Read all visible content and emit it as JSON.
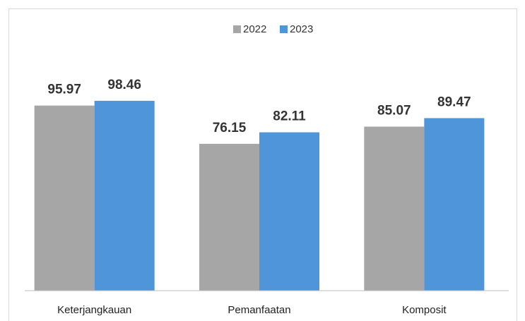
{
  "chart_data": {
    "type": "bar",
    "categories": [
      "Keterjangkauan",
      "Pemanfaatan",
      "Komposit"
    ],
    "series": [
      {
        "name": "2022",
        "color": "#a6a6a6",
        "values": [
          95.97,
          76.15,
          85.07
        ]
      },
      {
        "name": "2023",
        "color": "#4f95d9",
        "values": [
          98.46,
          82.11,
          89.47
        ]
      }
    ],
    "ylim": [
      0,
      120
    ]
  }
}
